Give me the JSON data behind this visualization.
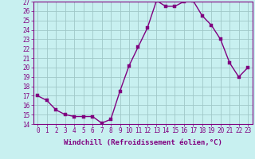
{
  "x": [
    0,
    1,
    2,
    3,
    4,
    5,
    6,
    7,
    8,
    9,
    10,
    11,
    12,
    13,
    14,
    15,
    16,
    17,
    18,
    19,
    20,
    21,
    22,
    23
  ],
  "y": [
    17,
    16.5,
    15.5,
    15,
    14.8,
    14.8,
    14.8,
    14.1,
    14.5,
    17.5,
    20.2,
    22.2,
    24.2,
    27.1,
    26.5,
    26.5,
    27.0,
    27.1,
    25.5,
    24.5,
    23.0,
    20.5,
    19.0,
    20.0
  ],
  "line_color": "#800080",
  "marker_color": "#800080",
  "bg_color": "#c8f0f0",
  "grid_color": "#a0c8c8",
  "xlabel": "Windchill (Refroidissement éolien,°C)",
  "ylim": [
    14,
    27
  ],
  "xlim": [
    -0.5,
    23.5
  ],
  "yticks": [
    14,
    15,
    16,
    17,
    18,
    19,
    20,
    21,
    22,
    23,
    24,
    25,
    26,
    27
  ],
  "xticks": [
    0,
    1,
    2,
    3,
    4,
    5,
    6,
    7,
    8,
    9,
    10,
    11,
    12,
    13,
    14,
    15,
    16,
    17,
    18,
    19,
    20,
    21,
    22,
    23
  ],
  "tick_label_size": 5.5,
  "xlabel_size": 6.5,
  "line_width": 1.0,
  "marker_size": 2.5
}
